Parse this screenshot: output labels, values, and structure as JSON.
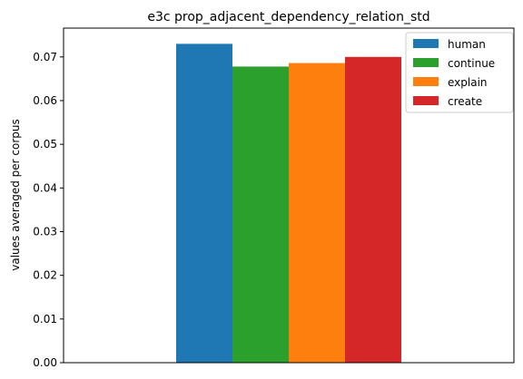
{
  "chart_data": {
    "type": "bar",
    "title": "e3c prop_adjacent_dependency_relation_std",
    "xlabel": "",
    "ylabel": "values averaged per corpus",
    "ylim": [
      0,
      0.0766
    ],
    "yticks": [
      "0.00",
      "0.01",
      "0.02",
      "0.03",
      "0.04",
      "0.05",
      "0.06",
      "0.07"
    ],
    "legend_position": "top-right",
    "grid": false,
    "categories": [
      ""
    ],
    "series": [
      {
        "name": "human",
        "values": [
          0.073
        ],
        "color": "#1f77b4"
      },
      {
        "name": "continue",
        "values": [
          0.0678
        ],
        "color": "#2ca02c"
      },
      {
        "name": "explain",
        "values": [
          0.0686
        ],
        "color": "#ff7f0e"
      },
      {
        "name": "create",
        "values": [
          0.07
        ],
        "color": "#d62728"
      }
    ]
  }
}
